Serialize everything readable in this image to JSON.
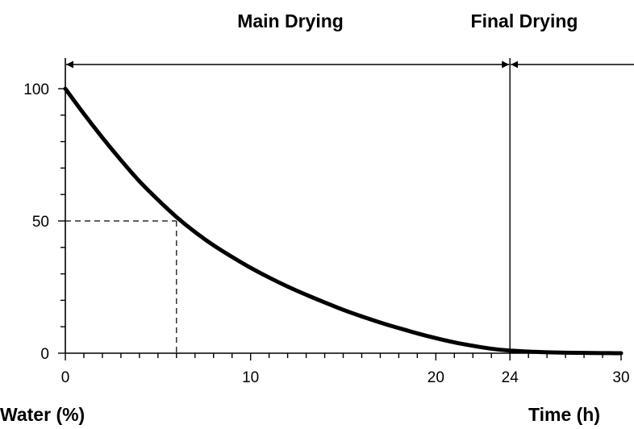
{
  "chart_data": {
    "type": "line",
    "title": "",
    "xlabel": "Time (h)",
    "ylabel": "Water (%)",
    "xlim": [
      0,
      30
    ],
    "ylim": [
      0,
      100
    ],
    "x_ticks": [
      0,
      10,
      20,
      24,
      30
    ],
    "y_ticks": [
      0,
      50,
      100
    ],
    "x_minor_step": 1,
    "y_minor_step": 10,
    "grid": false,
    "series": [
      {
        "x": [
          0,
          1,
          2,
          3,
          4,
          5,
          6,
          7,
          8,
          9,
          10,
          11,
          12,
          13,
          14,
          15,
          16,
          17,
          18,
          19,
          20,
          21,
          22,
          23,
          24,
          25,
          26,
          27,
          28,
          29,
          30
        ],
        "y": [
          100,
          90.5,
          81.5,
          73,
          65,
          58,
          51.5,
          45.8,
          40.8,
          36.4,
          32.3,
          28.6,
          25.2,
          22.1,
          19.2,
          16.4,
          13.9,
          11.6,
          9.5,
          7.5,
          5.7,
          4.1,
          2.8,
          1.7,
          1.0,
          0.6,
          0.35,
          0.2,
          0.1,
          0.05,
          0
        ]
      }
    ],
    "annotations": {
      "reference_point": {
        "x": 6,
        "y": 50
      },
      "phase_boundary_x": 24,
      "phases": [
        {
          "label": "Main Drying",
          "x_start": 0,
          "x_end": 24
        },
        {
          "label": "Final Drying",
          "x_start": 24,
          "x_end": 30
        }
      ]
    },
    "colors": {
      "line": "#000000",
      "axis": "#000000",
      "background": "#ffffff"
    }
  }
}
